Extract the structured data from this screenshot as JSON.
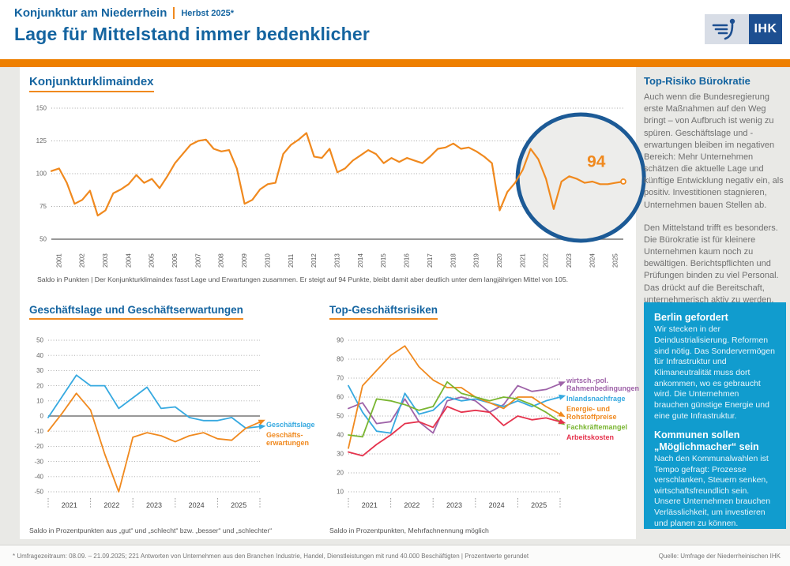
{
  "header": {
    "kicker": "Konjunktur am Niederrhein",
    "edition": "Herbst 2025*",
    "title": "Lage für Mittelstand immer bedenklicher",
    "logo_text": "IHK"
  },
  "colors": {
    "brand_blue": "#1464A0",
    "accent_orange": "#EE7F00",
    "line_orange": "#F0891E",
    "highlight_circle_blue": "#1C5A96",
    "callout_cyan": "#119CCE",
    "logo_blue": "#1D4F91"
  },
  "chart_data": [
    {
      "id": "konjunkturklimaindex",
      "type": "line",
      "title": "Konjunkturklimaindex",
      "ylim": [
        50,
        150
      ],
      "yticks": [
        150,
        125,
        100,
        75,
        50
      ],
      "solid_tick": 50,
      "grid": "dotted",
      "years": [
        "2001",
        "2002",
        "2003",
        "2004",
        "2005",
        "2006",
        "2007",
        "2008",
        "2009",
        "2010",
        "2011",
        "2012",
        "2013",
        "2014",
        "2015",
        "2016",
        "2017",
        "2018",
        "2019",
        "2020",
        "2021",
        "2022",
        "2023",
        "2024",
        "2025"
      ],
      "points_per_year": 3,
      "series": [
        {
          "name": "Konjunkturklimaindex",
          "color": "#F0891E",
          "end_dot": true,
          "values": [
            102,
            104,
            93,
            77,
            80,
            87,
            68,
            72,
            85,
            88,
            92,
            99,
            93,
            96,
            89,
            98,
            108,
            115,
            122,
            125,
            126,
            119,
            117,
            118,
            104,
            77,
            80,
            88,
            92,
            93,
            115,
            122,
            126,
            131,
            113,
            112,
            119,
            101,
            104,
            110,
            114,
            118,
            115,
            108,
            112,
            109,
            112,
            110,
            108,
            113,
            119,
            120,
            123,
            119,
            120,
            117,
            113,
            108,
            72,
            86,
            93,
            103,
            119,
            111,
            96,
            73,
            94,
            98,
            96,
            93,
            94,
            92,
            92,
            93,
            94
          ]
        }
      ],
      "highlight": {
        "label": "94"
      },
      "caption": "Saldo in Punkten | Der Konjunkturklimaindex fasst Lage und Erwartungen zusammen. Er steigt auf 94 Punkte, bleibt damit aber deutlich unter dem langjährigen Mittel von 105."
    },
    {
      "id": "geschaeftslage_erwartungen",
      "type": "line",
      "title": "Geschäftslage und Geschäftserwartungen",
      "ylim": [
        -50,
        50
      ],
      "yticks": [
        50,
        40,
        30,
        20,
        10,
        0,
        -10,
        -20,
        -30,
        -40,
        -50
      ],
      "solid_tick": 0,
      "grid": "dotted",
      "years": [
        "2021",
        "2022",
        "2023",
        "2024",
        "2025"
      ],
      "series": [
        {
          "name": "Geschäftslage",
          "legend": "Geschäftslage",
          "color": "#36A9E0",
          "arrow": true,
          "values": [
            -1,
            13,
            27,
            20,
            20,
            5,
            12,
            19,
            5,
            6,
            -1,
            -3,
            -3,
            -1,
            -8,
            -7
          ]
        },
        {
          "name": "Geschäftserwartungen",
          "legend": "Geschäfts- erwartungen",
          "color": "#F0891E",
          "arrow": true,
          "values": [
            -10,
            2,
            15,
            4,
            -25,
            -50,
            -14,
            -11,
            -13,
            -17,
            -13,
            -11,
            -15,
            -16,
            -8,
            -4
          ]
        }
      ],
      "caption": "Saldo in Prozentpunkten aus „gut“ und „schlecht“ bzw. „besser“ und „schlechter“"
    },
    {
      "id": "top_geschaeftsrisiken",
      "type": "line",
      "title": "Top-Geschäftsrisiken",
      "ylim": [
        10,
        90
      ],
      "yticks": [
        90,
        80,
        70,
        60,
        50,
        40,
        30,
        20,
        10
      ],
      "solid_tick": null,
      "grid": "dotted",
      "years": [
        "2021",
        "2022",
        "2023",
        "2024",
        "2025"
      ],
      "series": [
        {
          "name": "wirtsch.-pol. Rahmenbedingungen",
          "legend": "wirtsch.-pol. Rahmenbedingungen",
          "color": "#9E62A8",
          "arrow": true,
          "values": [
            54,
            57,
            46,
            47,
            59,
            47,
            41,
            58,
            60,
            58,
            52,
            56,
            66,
            63,
            64,
            67
          ]
        },
        {
          "name": "Inlandsnachfrage",
          "legend": "Inlandsnachfrage",
          "color": "#36A9E0",
          "arrow": true,
          "values": [
            66,
            52,
            42,
            41,
            62,
            51,
            53,
            60,
            58,
            59,
            57,
            55,
            58,
            55,
            58,
            60
          ]
        },
        {
          "name": "Energie- und Rohstoffpreise",
          "legend": "Energie- und Rohstoffpreise",
          "color": "#F0891E",
          "arrow": true,
          "values": [
            33,
            66,
            74,
            82,
            87,
            76,
            69,
            65,
            65,
            60,
            57,
            54,
            60,
            60,
            55,
            51
          ]
        },
        {
          "name": "Fachkräftemangel",
          "legend": "Fachkräftemangel",
          "color": "#79B530",
          "arrow": true,
          "values": [
            40,
            39,
            59,
            58,
            56,
            53,
            55,
            68,
            62,
            60,
            58,
            60,
            59,
            56,
            52,
            47
          ]
        },
        {
          "name": "Arbeitskosten",
          "legend": "Arbeitskosten",
          "color": "#E5334D",
          "arrow": true,
          "values": [
            31,
            29,
            35,
            40,
            46,
            47,
            44,
            55,
            52,
            53,
            52,
            45,
            50,
            48,
            49,
            47
          ]
        }
      ],
      "caption": "Saldo in Prozentpunkten, Mehrfachnennung möglich"
    }
  ],
  "sidebar": {
    "heading": "Top-Risiko Bürokratie",
    "paragraphs": [
      "Auch wenn die Bundesregierung erste Maßnahmen auf den Weg bringt – von Aufbruch ist wenig zu spüren. Geschäftslage und -erwartungen bleiben im negativen Bereich: Mehr Unternehmen schätzen die aktuelle Lage und künftige Entwicklung negativ ein, als positiv. Investitionen stagnieren, Unternehmen bauen Stellen ab.",
      "Den Mittelstand trifft es besonders. Die Bürokratie ist für kleinere Unternehmen kaum noch zu bewältigen. Berichtspflichten und Prüfungen binden zu viel Personal. Das drückt auf die Bereitschaft, unternehmerisch aktiv zu werden."
    ],
    "callout": {
      "sections": [
        {
          "heading": "Berlin gefordert",
          "text": "Wir stecken in der Deindustrialisierung. Reformen sind nötig. Das Sondervermögen für Infrastruktur und Klimaneutralität muss dort ankommen, wo es gebraucht wird. Die Unternehmen brauchen günstige Energie und eine gute Infrastruktur."
        },
        {
          "heading": "Kommunen sollen „Möglichmacher“ sein",
          "text": "Nach den Kommunalwahlen ist Tempo gefragt: Prozesse verschlanken, Steuern senken, wirtschaftsfreundlich sein. Unsere Unternehmen brauchen Verlässlichkeit, um investieren und planen zu können."
        }
      ]
    }
  },
  "footer": {
    "note": "* Umfragezeitraum: 08.09. – 21.09.2025; 221 Antworten von Unternehmen aus den Branchen Industrie, Handel, Dienstleistungen mit rund 40.000 Beschäftigten  |  Prozentwerte gerundet",
    "source": "Quelle: Umfrage der Niederrheinischen IHK"
  }
}
